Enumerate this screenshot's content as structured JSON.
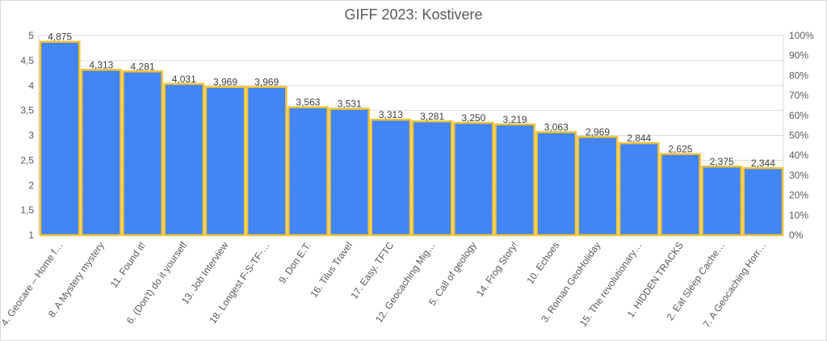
{
  "chart_data": {
    "type": "bar",
    "title": "GIFF 2023: Kostivere",
    "categories": [
      "4. Geocare – Home f…",
      "8. A Mystery mystery",
      "11. Found it!",
      "6. (Don't) do it yourself",
      "13. Job Interview",
      "18. Longest F-S-TF-…",
      "9. Don E.T.",
      "16. Tilus Travel",
      "17. Easy. TFTC",
      "12. Geocaching Mig…",
      "5. Call of geology",
      "14. Frog Story!",
      "10. Echoes",
      "3. Roman GeoHoliday",
      "15. The revolutionary…",
      "1. HIDDEN TRACKS",
      "2. Eat Sleep Cache…",
      "7. A Geocaching Horr…"
    ],
    "values": [
      4.875,
      4.313,
      4.281,
      4.031,
      3.969,
      3.969,
      3.563,
      3.531,
      3.313,
      3.281,
      3.25,
      3.219,
      3.063,
      2.969,
      2.844,
      2.625,
      2.375,
      2.344
    ],
    "value_labels": [
      "4,875",
      "4,313",
      "4,281",
      "4,031",
      "3,969",
      "3,969",
      "3,563",
      "3,531",
      "3,313",
      "3,281",
      "3,250",
      "3,219",
      "3,063",
      "2,969",
      "2,844",
      "2,625",
      "2,375",
      "2,344"
    ],
    "ylim": [
      1,
      5
    ],
    "yticks": [
      "1",
      "1,5",
      "2",
      "2,5",
      "3",
      "3,5",
      "4",
      "4,5",
      "5"
    ],
    "y2ticks": [
      "0%",
      "10%",
      "20%",
      "30%",
      "40%",
      "50%",
      "60%",
      "70%",
      "80%",
      "90%",
      "100%"
    ],
    "xlabel": "",
    "ylabel": "",
    "grid": true,
    "colors": {
      "bar_fill": "#4285f4",
      "bar_border": "#f1c232",
      "grid": "#d9d9d9",
      "text": "#595959"
    }
  }
}
